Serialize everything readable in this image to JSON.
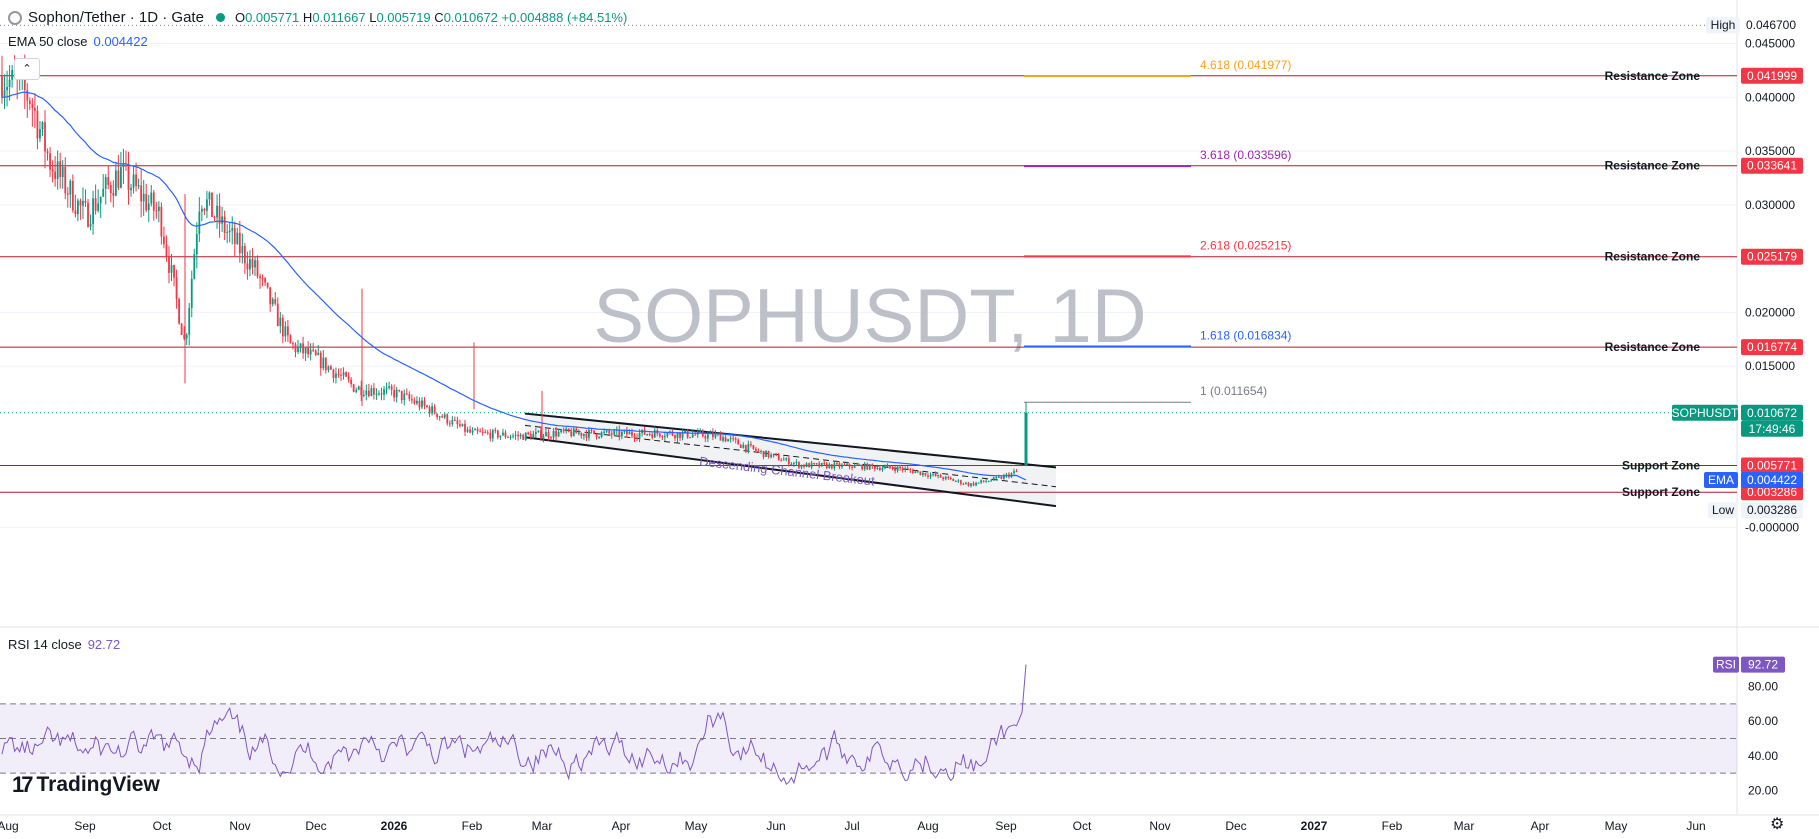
{
  "header": {
    "symbol": "Sophon/Tether · 1D · Gate",
    "open_label": "O",
    "open": "0.005771",
    "high_label": "H",
    "high": "0.011667",
    "low_label": "L",
    "low": "0.005719",
    "close_label": "C",
    "close": "0.010672",
    "change": "+0.004888 (+84.51%)"
  },
  "ema_legend": {
    "label": "EMA 50 close",
    "value": "0.004422"
  },
  "rsi_legend": {
    "label": "RSI 14 close",
    "value": "92.72"
  },
  "watermark": "SOPHUSDT, 1D",
  "drawings": {
    "channel_label": "Descending Channel Breakout"
  },
  "fib_levels": [
    {
      "label": "4.618 (0.041977)",
      "price": 0.041977,
      "color": "#f7a21b"
    },
    {
      "label": "3.618 (0.033596)",
      "price": 0.033596,
      "color": "#9c27b0"
    },
    {
      "label": "2.618 (0.025215)",
      "price": 0.025215,
      "color": "#f23645"
    },
    {
      "label": "1.618 (0.016834)",
      "price": 0.016834,
      "color": "#2962ff"
    },
    {
      "label": "1 (0.011654)",
      "price": 0.011654,
      "color": "#787b86"
    }
  ],
  "zones": [
    {
      "label": "Resistance Zone",
      "price": 0.041999,
      "value": "0.041999"
    },
    {
      "label": "Resistance Zone",
      "price": 0.033641,
      "value": "0.033641"
    },
    {
      "label": "Resistance Zone",
      "price": 0.025179,
      "value": "0.025179"
    },
    {
      "label": "Resistance Zone",
      "price": 0.016774,
      "value": "0.016774"
    },
    {
      "label": "Support Zone",
      "price": 0.005771,
      "value": "0.005771"
    },
    {
      "label": "Support Zone",
      "price": 0.003286,
      "value": "0.003286"
    }
  ],
  "price_axis": {
    "ticks": [
      "0.045000",
      "0.040000",
      "0.035000",
      "0.030000",
      "0.025000",
      "0.020000",
      "0.015000",
      "-0.000000"
    ],
    "tick_values": [
      0.045,
      0.04,
      0.035,
      0.03,
      0.025,
      0.02,
      0.015,
      0
    ],
    "high_label": "High",
    "high_value": "0.046700",
    "high_price": 0.0467,
    "low_label": "Low",
    "low_value": "0.003286",
    "low_price": 0.003286,
    "symbol_tag": "SOPHUSDT",
    "last_price": "0.010672",
    "last_price_num": 0.010672,
    "countdown": "17:49:46",
    "ema_tag": "EMA",
    "ema_value": "0.004422",
    "ema_price": 0.004422
  },
  "rsi_axis": {
    "ticks": [
      "80.00",
      "60.00",
      "40.00",
      "20.00"
    ],
    "tick_values": [
      80,
      60,
      40,
      20
    ],
    "tag": "RSI",
    "value": "92.72",
    "value_num": 92.72,
    "upper_band": 70,
    "middle_band": 50,
    "lower_band": 30
  },
  "time_axis": [
    "Aug",
    "Sep",
    "Oct",
    "Nov",
    "Dec",
    "2026",
    "Feb",
    "Mar",
    "Apr",
    "May",
    "Jun",
    "Jul",
    "Aug",
    "Sep",
    "Oct",
    "Nov",
    "Dec",
    "2027",
    "Feb",
    "Mar",
    "Apr",
    "May",
    "Jun"
  ],
  "brand": "TradingView",
  "colors": {
    "up": "#089981",
    "down": "#f23645",
    "ema": "#2962ff",
    "rsi": "#7e57c2",
    "zone_line": "#b2182b",
    "zone_tag": "#f23645",
    "grid": "#f0f3fa"
  }
}
